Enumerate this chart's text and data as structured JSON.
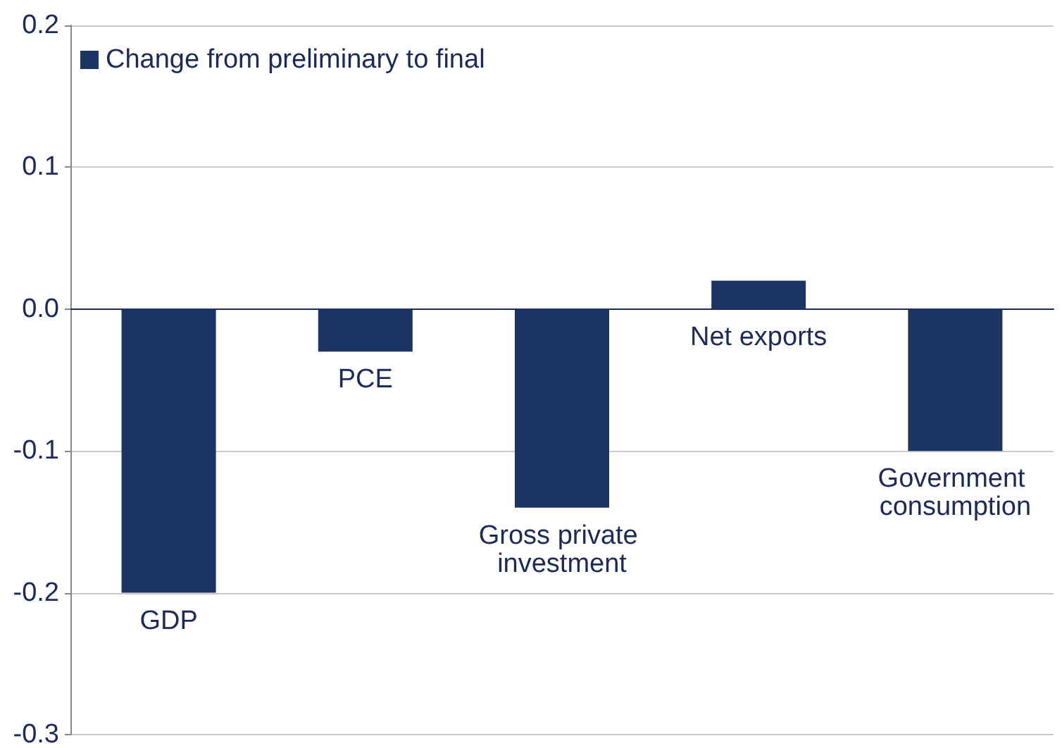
{
  "chart_data": {
    "type": "bar",
    "categories": [
      "GDP",
      "PCE",
      "Gross private investment",
      "Net exports",
      "Government consumption"
    ],
    "series": [
      {
        "name": "Change from preliminary to final",
        "color": "#1c3461",
        "values": [
          -0.2,
          -0.03,
          -0.14,
          0.02,
          -0.1
        ]
      }
    ],
    "ylim": [
      -0.3,
      0.2
    ],
    "yticks": [
      {
        "value": -0.3,
        "label": "-0.3"
      },
      {
        "value": -0.2,
        "label": "-0.2"
      },
      {
        "value": -0.1,
        "label": "-0.1"
      },
      {
        "value": 0,
        "label": "0.0"
      },
      {
        "value": 0.1,
        "label": "0.1"
      },
      {
        "value": 0.2,
        "label": "0.2"
      }
    ],
    "grid": "y",
    "legend": "top left"
  }
}
